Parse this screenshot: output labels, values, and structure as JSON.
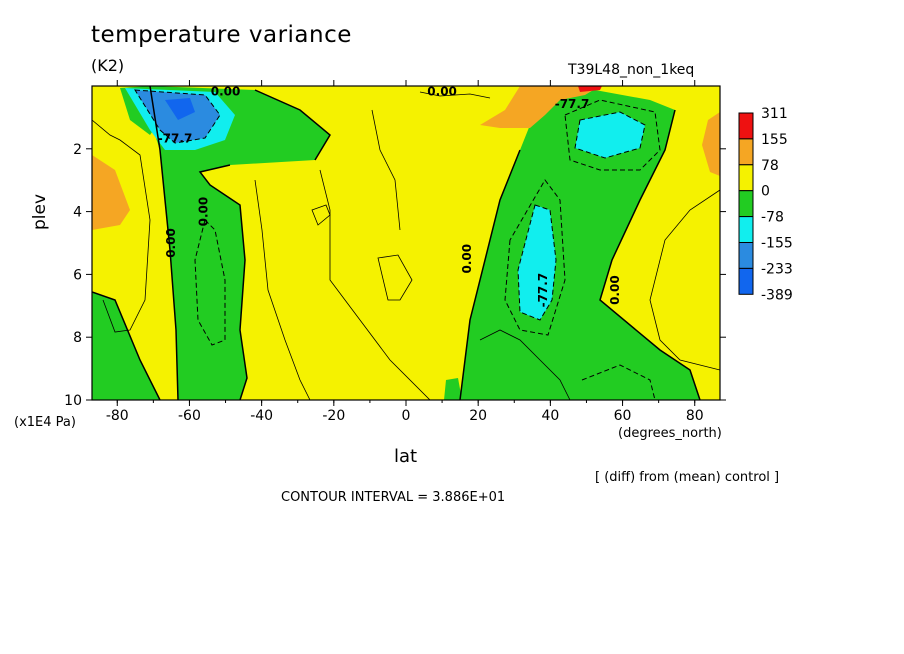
{
  "header": {
    "title": "temperature variance",
    "units": "(K2)",
    "run_name": "T39L48_non_1keq"
  },
  "footer": {
    "comparison_note": "[ (diff) from (mean) control ]",
    "contour_interval": "CONTOUR INTERVAL = 3.886E+01"
  },
  "colors": {
    "c_pos3": "#ee1111",
    "c_pos2": "#f5a623",
    "c_pos1": "#f5f200",
    "c_neg1": "#22cc22",
    "c_neg2": "#11eeee",
    "c_neg3": "#2b8be0",
    "c_neg4": "#1166ee"
  },
  "chart_data": {
    "type": "heatmap",
    "title": "temperature variance",
    "subtitle": "(K2)",
    "xlabel": "lat",
    "x_unit": "(degrees_north)",
    "ylabel": "plev",
    "y_unit": "(x1E4 Pa)",
    "xlim": [
      -87,
      87
    ],
    "ylim": [
      0,
      10
    ],
    "y_inverted": true,
    "x_ticks": [
      -80,
      -60,
      -40,
      -20,
      0,
      20,
      40,
      60,
      80
    ],
    "x_tick_labels": [
      "-80",
      "-60",
      "-40",
      "-20",
      "0",
      "20",
      "40",
      "60",
      "80"
    ],
    "y_ticks": [
      2,
      4,
      6,
      8,
      10
    ],
    "y_tick_labels": [
      "2",
      "4",
      "6",
      "8",
      "10"
    ],
    "colorbar": {
      "levels": [
        "311",
        "155",
        "78",
        "0",
        "-78",
        "-155",
        "-233",
        "-389"
      ],
      "colors": [
        "#ee1111",
        "#f5a623",
        "#f5f200",
        "#22cc22",
        "#11eeee",
        "#2b8be0",
        "#1166ee"
      ]
    },
    "contour_labels": [
      {
        "text": "0.00",
        "lat": -50,
        "plev": 0.3
      },
      {
        "text": "0.00",
        "lat": 10,
        "plev": 0.3
      },
      {
        "text": "-77.7",
        "lat": -64,
        "plev": 1.8
      },
      {
        "text": "-77.7",
        "lat": 46,
        "plev": 0.7
      },
      {
        "text": "0.00",
        "lat": -55,
        "plev": 4.0
      },
      {
        "text": "0.00",
        "lat": -64,
        "plev": 5.0
      },
      {
        "text": "0.00",
        "lat": 18,
        "plev": 5.5
      },
      {
        "text": "-77.7",
        "lat": 39,
        "plev": 6.5
      },
      {
        "text": "0.00",
        "lat": 59,
        "plev": 6.5
      }
    ],
    "regions": [
      {
        "level": "c_neg1",
        "desc": "southern high latitude band",
        "lat": [
          -70,
          -52
        ],
        "plev": [
          1.5,
          10
        ]
      },
      {
        "level": "c_neg1",
        "desc": "northern subtropical band",
        "lat": [
          15,
          70
        ],
        "plev": [
          1,
          10
        ]
      },
      {
        "level": "c_neg2",
        "desc": "northern core",
        "lat": [
          30,
          42
        ],
        "plev": [
          3.7,
          7.5
        ]
      },
      {
        "level": "c_neg3",
        "desc": "southern upper minimum",
        "lat": [
          -78,
          -55
        ],
        "plev": [
          0,
          1.6
        ]
      },
      {
        "level": "c_neg2",
        "desc": "northern upper minimum",
        "lat": [
          48,
          65
        ],
        "plev": [
          1,
          2.2
        ]
      },
      {
        "level": "c_pos2",
        "desc": "southern flank",
        "lat": [
          -87,
          -78
        ],
        "plev": [
          3,
          5.5
        ]
      },
      {
        "level": "c_pos2",
        "desc": "northern flank",
        "lat": [
          78,
          87
        ],
        "plev": [
          1,
          2.5
        ]
      },
      {
        "level": "c_pos2",
        "desc": "northern top",
        "lat": [
          35,
          58
        ],
        "plev": [
          0,
          1.5
        ]
      },
      {
        "level": "c_pos3",
        "desc": "northern top maximum",
        "lat": [
          50,
          60
        ],
        "plev": [
          0,
          0.2
        ]
      }
    ]
  }
}
